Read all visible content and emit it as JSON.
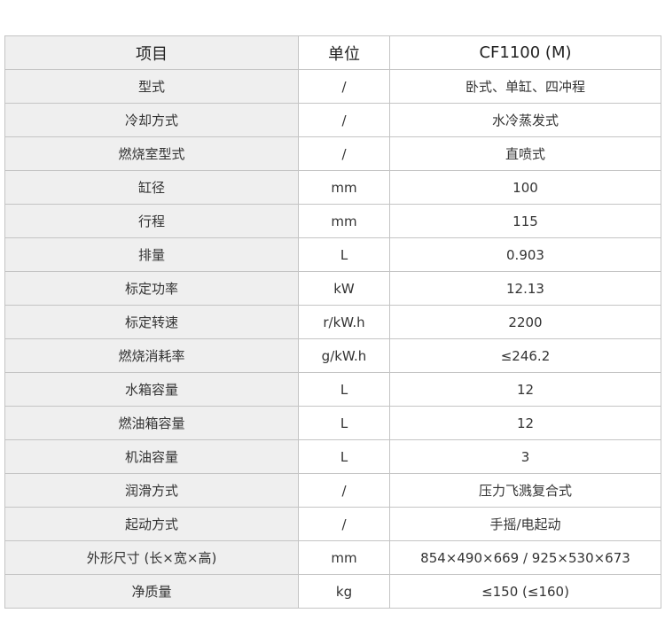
{
  "table": {
    "headers": [
      "项目",
      "单位",
      "CF1100 (M)"
    ],
    "rows": [
      [
        "型式",
        "/",
        "卧式、单缸、四冲程"
      ],
      [
        "冷却方式",
        "/",
        "水冷蒸发式"
      ],
      [
        "燃烧室型式",
        "/",
        "直喷式"
      ],
      [
        "缸径",
        "mm",
        "100"
      ],
      [
        "行程",
        "mm",
        "115"
      ],
      [
        "排量",
        "L",
        "0.903"
      ],
      [
        "标定功率",
        "kW",
        "12.13"
      ],
      [
        "标定转速",
        "r/kW.h",
        "2200"
      ],
      [
        "燃烧消耗率",
        "g/kW.h",
        "≤246.2"
      ],
      [
        "水箱容量",
        "L",
        "12"
      ],
      [
        "燃油箱容量",
        "L",
        "12"
      ],
      [
        "机油容量",
        "L",
        "3"
      ],
      [
        "润滑方式",
        "/",
        "压力飞溅复合式"
      ],
      [
        "起动方式",
        "/",
        "手摇/电起动"
      ],
      [
        "外形尺寸 (长×宽×高)",
        "mm",
        "854×490×669 / 925×530×673"
      ],
      [
        "净质量",
        "kg",
        "≤150 (≤160)"
      ]
    ]
  }
}
